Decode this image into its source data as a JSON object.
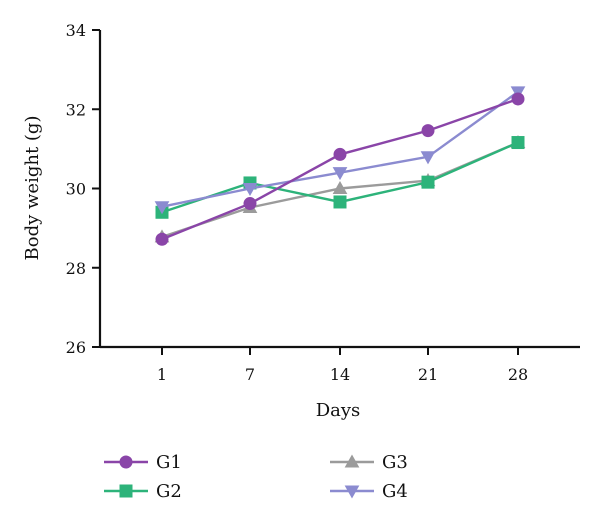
{
  "chart_data": {
    "type": "line",
    "xlabel": "Days",
    "ylabel": "Body weight (g)",
    "categories": [
      "1",
      "7",
      "14",
      "21",
      "28"
    ],
    "ylim": [
      26,
      34
    ],
    "yticks": [
      "26",
      "28",
      "30",
      "32",
      "34"
    ],
    "grid": false,
    "legend_position": "bottom",
    "series": [
      {
        "name": "G1",
        "values": [
          28.72,
          29.62,
          30.86,
          31.46,
          32.26
        ],
        "color": "#8a45a8",
        "marker": "circle"
      },
      {
        "name": "G2",
        "values": [
          29.4,
          30.14,
          29.66,
          30.16,
          31.16
        ],
        "color": "#2db37a",
        "marker": "square"
      },
      {
        "name": "G3",
        "values": [
          28.78,
          29.52,
          30.0,
          30.2,
          31.16
        ],
        "color": "#9b9b9b",
        "marker": "triangle-up"
      },
      {
        "name": "G4",
        "values": [
          29.54,
          30.0,
          30.4,
          30.8,
          32.44
        ],
        "color": "#8b8bd0",
        "marker": "triangle-down"
      }
    ]
  }
}
